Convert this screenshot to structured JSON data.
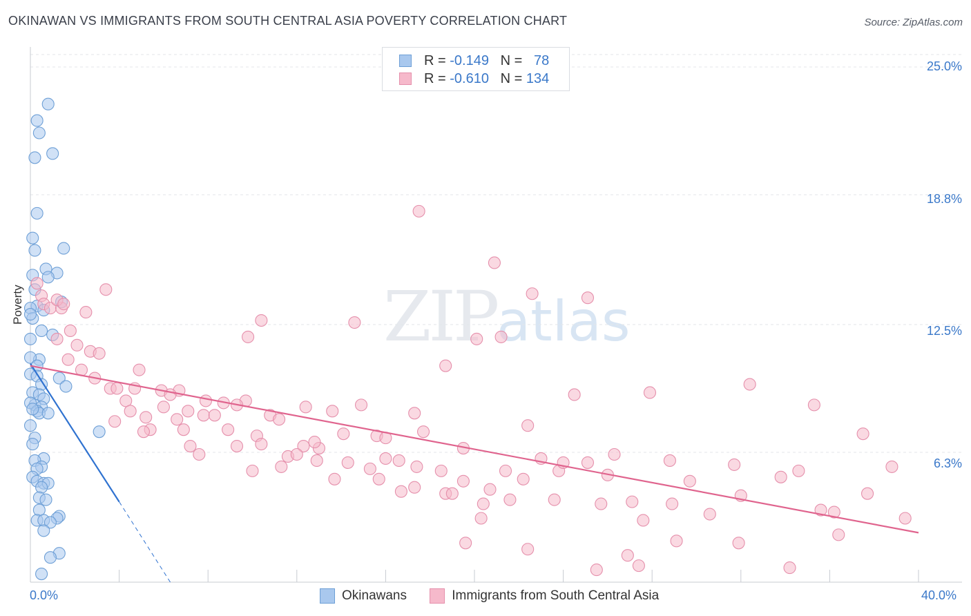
{
  "title": "OKINAWAN VS IMMIGRANTS FROM SOUTH CENTRAL ASIA POVERTY CORRELATION CHART",
  "source": "Source: ZipAtlas.com",
  "watermark": {
    "zip": "ZIP",
    "atlas": "atlas"
  },
  "legend": {
    "rows": [
      {
        "r_label": "R = ",
        "r_value": "-0.149",
        "n_label": "N = ",
        "n_value": "78",
        "color": "#a9c8ee",
        "border": "#6d9fd6"
      },
      {
        "r_label": "R = ",
        "r_value": "-0.610",
        "n_label": "N = ",
        "n_value": "134",
        "color": "#f6b9cb",
        "border": "#e58fab"
      }
    ]
  },
  "bottom_legend": [
    {
      "label": "Okinawans",
      "color": "#a9c8ee",
      "border": "#6d9fd6"
    },
    {
      "label": "Immigrants from South Central Asia",
      "color": "#f6b9cb",
      "border": "#e58fab"
    }
  ],
  "axis": {
    "y_title": "Poverty",
    "y_ticks": [
      "25.0%",
      "18.8%",
      "12.5%",
      "6.3%"
    ],
    "x_left": "0.0%",
    "x_right": "40.0%"
  },
  "chart_data": {
    "type": "scatter",
    "xlim": [
      0,
      40
    ],
    "ylim": [
      0,
      25.0
    ],
    "y_tick_values": [
      25.0,
      18.8,
      12.5,
      6.3
    ],
    "grid": true,
    "series": [
      {
        "name": "Okinawans",
        "color": "#6d9fd6",
        "fill": "#a9c8ee",
        "trend": {
          "x": [
            0.0,
            4.0
          ],
          "y": [
            10.6,
            3.9
          ],
          "dashed_to": [
            6.3,
            0.0
          ]
        },
        "points": [
          [
            0.8,
            23.2
          ],
          [
            0.3,
            22.4
          ],
          [
            0.4,
            21.8
          ],
          [
            1.0,
            20.8
          ],
          [
            0.2,
            20.6
          ],
          [
            0.3,
            17.9
          ],
          [
            1.5,
            16.2
          ],
          [
            0.1,
            16.7
          ],
          [
            0.2,
            16.1
          ],
          [
            0.7,
            15.2
          ],
          [
            1.2,
            15.0
          ],
          [
            0.8,
            14.8
          ],
          [
            0.1,
            14.9
          ],
          [
            0.2,
            14.2
          ],
          [
            1.4,
            13.6
          ],
          [
            0.3,
            13.4
          ],
          [
            0.6,
            13.2
          ],
          [
            0.0,
            13.3
          ],
          [
            0.1,
            12.8
          ],
          [
            0.0,
            13.0
          ],
          [
            0.5,
            12.2
          ],
          [
            1.0,
            12.0
          ],
          [
            0.0,
            11.8
          ],
          [
            0.4,
            10.8
          ],
          [
            0.0,
            10.9
          ],
          [
            0.3,
            10.5
          ],
          [
            0.0,
            10.1
          ],
          [
            0.3,
            10.0
          ],
          [
            0.5,
            9.6
          ],
          [
            1.3,
            9.9
          ],
          [
            1.6,
            9.5
          ],
          [
            0.1,
            9.2
          ],
          [
            0.4,
            9.1
          ],
          [
            0.6,
            8.9
          ],
          [
            0.2,
            8.6
          ],
          [
            0.5,
            8.5
          ],
          [
            0.0,
            8.7
          ],
          [
            0.3,
            8.3
          ],
          [
            0.4,
            8.2
          ],
          [
            0.8,
            8.2
          ],
          [
            0.1,
            8.4
          ],
          [
            0.0,
            7.6
          ],
          [
            3.1,
            7.3
          ],
          [
            0.2,
            7.0
          ],
          [
            0.1,
            6.7
          ],
          [
            0.6,
            6.0
          ],
          [
            0.2,
            5.9
          ],
          [
            0.5,
            5.6
          ],
          [
            0.3,
            5.5
          ],
          [
            0.1,
            5.1
          ],
          [
            0.3,
            4.9
          ],
          [
            0.6,
            4.8
          ],
          [
            0.8,
            4.8
          ],
          [
            0.5,
            4.6
          ],
          [
            0.4,
            4.1
          ],
          [
            0.7,
            4.0
          ],
          [
            0.4,
            3.5
          ],
          [
            1.3,
            3.2
          ],
          [
            1.2,
            3.1
          ],
          [
            0.3,
            3.0
          ],
          [
            0.6,
            3.0
          ],
          [
            0.9,
            2.9
          ],
          [
            0.6,
            2.5
          ],
          [
            1.3,
            1.4
          ],
          [
            0.9,
            1.2
          ],
          [
            0.5,
            0.4
          ]
        ]
      },
      {
        "name": "Immigrants from South Central Asia",
        "color": "#e58fab",
        "fill": "#f6b9cb",
        "trend": {
          "x": [
            0.0,
            40.0
          ],
          "y": [
            10.5,
            2.4
          ]
        },
        "points": [
          [
            0.3,
            14.5
          ],
          [
            0.5,
            13.9
          ],
          [
            0.6,
            13.5
          ],
          [
            0.9,
            13.3
          ],
          [
            1.4,
            13.3
          ],
          [
            1.2,
            13.7
          ],
          [
            1.5,
            13.5
          ],
          [
            3.4,
            14.2
          ],
          [
            2.5,
            13.1
          ],
          [
            1.8,
            12.2
          ],
          [
            1.2,
            11.8
          ],
          [
            2.1,
            11.5
          ],
          [
            2.7,
            11.2
          ],
          [
            3.1,
            11.1
          ],
          [
            1.7,
            10.8
          ],
          [
            2.3,
            10.3
          ],
          [
            4.9,
            10.3
          ],
          [
            2.9,
            9.9
          ],
          [
            3.6,
            9.4
          ],
          [
            3.9,
            9.4
          ],
          [
            4.7,
            9.4
          ],
          [
            5.9,
            9.3
          ],
          [
            6.7,
            9.3
          ],
          [
            6.3,
            9.1
          ],
          [
            7.9,
            8.8
          ],
          [
            8.7,
            8.7
          ],
          [
            9.7,
            8.8
          ],
          [
            9.3,
            8.6
          ],
          [
            4.3,
            8.8
          ],
          [
            6.0,
            8.5
          ],
          [
            4.5,
            8.3
          ],
          [
            7.1,
            8.3
          ],
          [
            7.8,
            8.1
          ],
          [
            8.3,
            8.1
          ],
          [
            10.8,
            8.1
          ],
          [
            11.2,
            7.9
          ],
          [
            12.4,
            8.5
          ],
          [
            13.6,
            8.3
          ],
          [
            14.9,
            8.6
          ],
          [
            17.3,
            8.2
          ],
          [
            5.2,
            8.0
          ],
          [
            6.6,
            7.9
          ],
          [
            3.8,
            7.8
          ],
          [
            5.4,
            7.4
          ],
          [
            5.1,
            7.3
          ],
          [
            6.9,
            7.4
          ],
          [
            8.9,
            7.4
          ],
          [
            10.2,
            7.1
          ],
          [
            10.4,
            6.7
          ],
          [
            12.3,
            6.6
          ],
          [
            13.0,
            6.5
          ],
          [
            12.8,
            6.8
          ],
          [
            14.1,
            7.2
          ],
          [
            15.6,
            7.1
          ],
          [
            16.0,
            7.0
          ],
          [
            17.7,
            7.3
          ],
          [
            19.5,
            6.5
          ],
          [
            22.4,
            7.6
          ],
          [
            24.5,
            9.1
          ],
          [
            27.9,
            9.2
          ],
          [
            32.4,
            9.6
          ],
          [
            35.3,
            8.6
          ],
          [
            37.5,
            7.2
          ],
          [
            7.2,
            6.6
          ],
          [
            7.6,
            6.2
          ],
          [
            9.3,
            6.6
          ],
          [
            11.6,
            6.1
          ],
          [
            12.0,
            6.2
          ],
          [
            11.3,
            5.6
          ],
          [
            12.9,
            5.9
          ],
          [
            14.3,
            5.8
          ],
          [
            15.3,
            5.5
          ],
          [
            15.7,
            5.0
          ],
          [
            16.0,
            6.0
          ],
          [
            16.6,
            5.9
          ],
          [
            17.4,
            5.6
          ],
          [
            18.5,
            5.4
          ],
          [
            10.0,
            5.4
          ],
          [
            13.7,
            5.0
          ],
          [
            16.7,
            4.4
          ],
          [
            17.3,
            4.6
          ],
          [
            18.7,
            4.3
          ],
          [
            19.0,
            4.3
          ],
          [
            19.5,
            4.9
          ],
          [
            20.7,
            4.5
          ],
          [
            21.4,
            5.4
          ],
          [
            20.4,
            3.8
          ],
          [
            20.3,
            3.1
          ],
          [
            21.6,
            4.0
          ],
          [
            22.2,
            5.0
          ],
          [
            23.0,
            6.0
          ],
          [
            23.6,
            4.0
          ],
          [
            23.8,
            5.4
          ],
          [
            25.1,
            5.8
          ],
          [
            26.0,
            5.2
          ],
          [
            26.3,
            6.2
          ],
          [
            25.7,
            3.8
          ],
          [
            27.1,
            3.9
          ],
          [
            27.6,
            3.0
          ],
          [
            28.9,
            3.8
          ],
          [
            28.8,
            5.9
          ],
          [
            29.7,
            4.9
          ],
          [
            30.6,
            3.3
          ],
          [
            31.7,
            5.7
          ],
          [
            32.0,
            4.2
          ],
          [
            33.8,
            5.1
          ],
          [
            34.6,
            5.4
          ],
          [
            35.6,
            3.5
          ],
          [
            36.2,
            3.4
          ],
          [
            36.4,
            2.3
          ],
          [
            37.7,
            4.3
          ],
          [
            38.8,
            5.6
          ],
          [
            39.4,
            3.1
          ],
          [
            29.1,
            2.0
          ],
          [
            31.9,
            1.9
          ],
          [
            26.9,
            1.3
          ],
          [
            27.4,
            0.8
          ],
          [
            25.5,
            0.6
          ],
          [
            34.2,
            0.7
          ],
          [
            22.4,
            1.6
          ],
          [
            19.6,
            1.9
          ],
          [
            17.5,
            18.0
          ],
          [
            20.9,
            15.5
          ],
          [
            22.6,
            14.0
          ],
          [
            21.2,
            11.9
          ],
          [
            20.1,
            11.8
          ],
          [
            14.6,
            12.6
          ],
          [
            10.4,
            12.7
          ],
          [
            18.7,
            10.5
          ],
          [
            9.8,
            11.9
          ],
          [
            24.0,
            5.8
          ],
          [
            25.1,
            13.8
          ]
        ]
      }
    ]
  }
}
